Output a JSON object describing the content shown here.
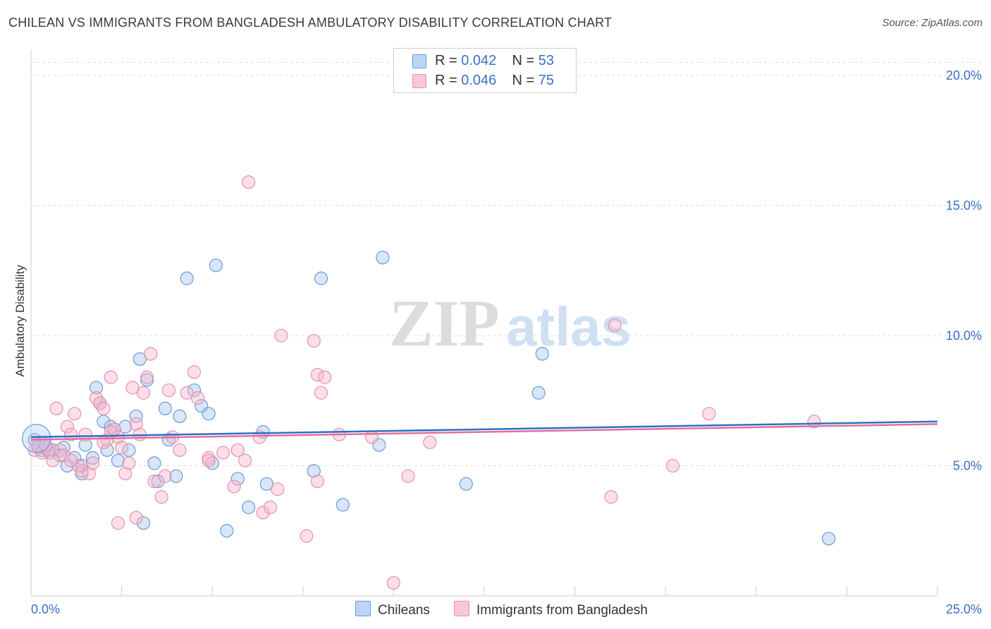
{
  "title": "CHILEAN VS IMMIGRANTS FROM BANGLADESH AMBULATORY DISABILITY CORRELATION CHART",
  "source": "Source: ZipAtlas.com",
  "watermark": {
    "zip": "ZIP",
    "atlas": "atlas"
  },
  "legend": {
    "rows": [
      {
        "r_label": "R = ",
        "r_value": "0.042",
        "n_label": "N = ",
        "n_value": "53"
      },
      {
        "r_label": "R = ",
        "r_value": "0.046",
        "n_label": "N = ",
        "n_value": "75"
      }
    ]
  },
  "colors": {
    "series1_fill": "#a8c8f0",
    "series1_stroke": "#6a9ad8",
    "series1_line": "#2e6fc8",
    "series2_fill": "#f7b8cc",
    "series2_stroke": "#e890ad",
    "series2_line": "#e0709a",
    "axis_label": "#3a6fc4",
    "grid": "#dddddd"
  },
  "chart_data": {
    "type": "scatter",
    "title": "CHILEAN VS IMMIGRANTS FROM BANGLADESH AMBULATORY DISABILITY CORRELATION CHART",
    "xlabel": "",
    "ylabel": "Ambulatory Disability",
    "xlim": [
      0,
      25
    ],
    "ylim": [
      0,
      21
    ],
    "x_tick_labels": [
      "0.0%",
      "25.0%"
    ],
    "y_ticks": [
      5,
      10,
      15,
      20
    ],
    "y_tick_labels": [
      "5.0%",
      "10.0%",
      "15.0%",
      "20.0%"
    ],
    "legend_position": "top-center",
    "series": [
      {
        "name": "Chileans",
        "trend": {
          "x": [
            0,
            25
          ],
          "y": [
            6.1,
            6.7
          ]
        },
        "points": [
          [
            0.1,
            6.0
          ],
          [
            0.2,
            5.7
          ],
          [
            0.3,
            5.6
          ],
          [
            0.5,
            5.5
          ],
          [
            0.6,
            5.6
          ],
          [
            0.9,
            5.7
          ],
          [
            1.0,
            5.0
          ],
          [
            1.2,
            5.3
          ],
          [
            1.4,
            4.7
          ],
          [
            1.5,
            5.8
          ],
          [
            1.7,
            5.3
          ],
          [
            1.8,
            8.0
          ],
          [
            1.9,
            7.4
          ],
          [
            2.0,
            6.7
          ],
          [
            2.1,
            5.6
          ],
          [
            2.2,
            6.5
          ],
          [
            2.4,
            5.2
          ],
          [
            2.6,
            6.5
          ],
          [
            2.7,
            5.6
          ],
          [
            2.9,
            6.9
          ],
          [
            3.0,
            9.1
          ],
          [
            3.2,
            8.3
          ],
          [
            3.4,
            5.1
          ],
          [
            3.5,
            4.4
          ],
          [
            3.7,
            7.2
          ],
          [
            3.8,
            6.0
          ],
          [
            4.0,
            4.6
          ],
          [
            4.1,
            6.9
          ],
          [
            4.3,
            12.2
          ],
          [
            4.5,
            7.9
          ],
          [
            4.7,
            7.3
          ],
          [
            4.9,
            7.0
          ],
          [
            5.0,
            5.1
          ],
          [
            5.1,
            12.7
          ],
          [
            5.4,
            2.5
          ],
          [
            5.7,
            4.5
          ],
          [
            6.0,
            3.4
          ],
          [
            6.4,
            6.3
          ],
          [
            6.5,
            4.3
          ],
          [
            7.8,
            4.8
          ],
          [
            8.0,
            12.2
          ],
          [
            8.6,
            3.5
          ],
          [
            9.6,
            5.8
          ],
          [
            9.7,
            13.0
          ],
          [
            12.0,
            4.3
          ],
          [
            14.0,
            7.8
          ],
          [
            14.1,
            9.3
          ],
          [
            22.0,
            2.2
          ],
          [
            3.1,
            2.8
          ],
          [
            1.4,
            5.0
          ],
          [
            0.4,
            5.7
          ],
          [
            0.8,
            5.4
          ],
          [
            2.3,
            6.4
          ]
        ]
      },
      {
        "name": "Immigrants from Bangladesh",
        "trend": {
          "x": [
            0,
            25
          ],
          "y": [
            6.0,
            6.6
          ]
        },
        "points": [
          [
            0.1,
            5.6
          ],
          [
            0.2,
            5.8
          ],
          [
            0.3,
            5.5
          ],
          [
            0.5,
            5.6
          ],
          [
            0.6,
            5.2
          ],
          [
            0.7,
            7.2
          ],
          [
            0.8,
            5.6
          ],
          [
            0.9,
            5.4
          ],
          [
            1.0,
            6.5
          ],
          [
            1.1,
            6.2
          ],
          [
            1.2,
            7.0
          ],
          [
            1.3,
            5.0
          ],
          [
            1.4,
            4.8
          ],
          [
            1.5,
            6.2
          ],
          [
            1.6,
            4.7
          ],
          [
            1.7,
            5.1
          ],
          [
            1.8,
            7.6
          ],
          [
            1.9,
            7.4
          ],
          [
            2.0,
            7.2
          ],
          [
            2.1,
            6.0
          ],
          [
            2.2,
            8.4
          ],
          [
            2.3,
            6.4
          ],
          [
            2.4,
            6.1
          ],
          [
            2.5,
            5.7
          ],
          [
            2.6,
            4.7
          ],
          [
            2.7,
            5.1
          ],
          [
            2.8,
            8.0
          ],
          [
            2.9,
            6.6
          ],
          [
            3.0,
            6.2
          ],
          [
            3.1,
            7.8
          ],
          [
            3.2,
            8.4
          ],
          [
            3.3,
            9.3
          ],
          [
            3.4,
            4.4
          ],
          [
            3.6,
            3.8
          ],
          [
            3.8,
            7.9
          ],
          [
            3.9,
            6.1
          ],
          [
            4.1,
            5.6
          ],
          [
            4.3,
            7.8
          ],
          [
            4.5,
            8.6
          ],
          [
            4.6,
            7.6
          ],
          [
            4.9,
            5.3
          ],
          [
            5.3,
            5.5
          ],
          [
            5.6,
            4.2
          ],
          [
            5.7,
            5.6
          ],
          [
            5.9,
            5.2
          ],
          [
            6.0,
            15.9
          ],
          [
            6.3,
            6.1
          ],
          [
            6.4,
            3.2
          ],
          [
            6.6,
            3.4
          ],
          [
            6.8,
            4.1
          ],
          [
            6.9,
            10.0
          ],
          [
            7.6,
            2.3
          ],
          [
            7.8,
            9.8
          ],
          [
            7.9,
            4.4
          ],
          [
            7.9,
            8.5
          ],
          [
            8.0,
            7.8
          ],
          [
            8.1,
            8.4
          ],
          [
            8.5,
            6.2
          ],
          [
            9.4,
            6.1
          ],
          [
            10.0,
            0.5
          ],
          [
            10.4,
            4.6
          ],
          [
            11.0,
            5.9
          ],
          [
            16.0,
            3.8
          ],
          [
            16.1,
            10.4
          ],
          [
            17.7,
            5.0
          ],
          [
            18.7,
            7.0
          ],
          [
            21.6,
            6.7
          ],
          [
            2.4,
            2.8
          ],
          [
            2.9,
            3.0
          ],
          [
            3.7,
            4.6
          ],
          [
            1.1,
            5.2
          ],
          [
            0.4,
            5.8
          ],
          [
            4.9,
            5.2
          ],
          [
            2.0,
            5.9
          ],
          [
            2.2,
            6.3
          ]
        ]
      }
    ]
  },
  "bottom_legend": {
    "series1": "Chileans",
    "series2": "Immigrants from Bangladesh"
  }
}
